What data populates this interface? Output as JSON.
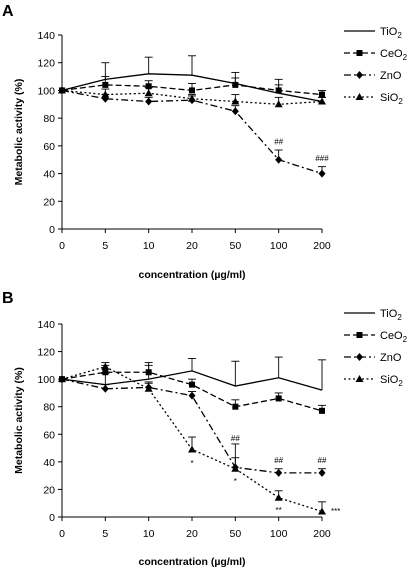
{
  "chart_data": [
    {
      "panel": "A",
      "type": "line",
      "xlabel": "concentration (µg/ml)",
      "ylabel": "Metabolic activity (%)",
      "categories": [
        "0",
        "5",
        "10",
        "20",
        "50",
        "100",
        "200"
      ],
      "ylim": [
        0,
        140
      ],
      "yticks": [
        "0",
        "20",
        "40",
        "60",
        "80",
        "100",
        "120",
        "140"
      ],
      "grid": false,
      "legend": "top-right",
      "series": [
        {
          "name": "TiO",
          "sub": "2",
          "style": "solid",
          "marker": "none",
          "values": [
            100,
            108,
            112,
            111,
            105,
            98,
            92
          ],
          "errors": [
            0,
            12,
            12,
            14,
            8,
            10,
            3
          ]
        },
        {
          "name": "CeO",
          "sub": "2",
          "style": "dashed",
          "marker": "square",
          "values": [
            100,
            104,
            103,
            100,
            104,
            100,
            97
          ],
          "errors": [
            0,
            6,
            4,
            5,
            5,
            4,
            3
          ]
        },
        {
          "name": "ZnO",
          "sub": "",
          "style": "dashdot",
          "marker": "diamond",
          "values": [
            100,
            94,
            92,
            93,
            85,
            50,
            40
          ],
          "errors": [
            0,
            3,
            3,
            3,
            4,
            7,
            5
          ]
        },
        {
          "name": "SiO",
          "sub": "2",
          "style": "dotted",
          "marker": "triangle",
          "values": [
            100,
            97,
            98,
            94,
            92,
            90,
            92
          ],
          "errors": [
            0,
            4,
            4,
            3,
            5,
            5,
            3
          ]
        }
      ],
      "annotations": [
        {
          "text": "##",
          "x": "100",
          "y": 61
        },
        {
          "text": "###",
          "x": "200",
          "y": 49
        }
      ]
    },
    {
      "panel": "B",
      "type": "line",
      "xlabel": "concentration (µg/ml)",
      "ylabel": "Metabolic activity (%)",
      "categories": [
        "0",
        "5",
        "10",
        "20",
        "50",
        "100",
        "200"
      ],
      "ylim": [
        0,
        140
      ],
      "yticks": [
        "0",
        "20",
        "40",
        "60",
        "80",
        "100",
        "120",
        "140"
      ],
      "grid": false,
      "legend": "top-right",
      "series": [
        {
          "name": "TiO",
          "sub": "2",
          "style": "solid",
          "marker": "none",
          "values": [
            100,
            96,
            100,
            106,
            95,
            101,
            92
          ],
          "errors": [
            0,
            8,
            12,
            9,
            18,
            15,
            22
          ]
        },
        {
          "name": "CeO",
          "sub": "2",
          "style": "dashed",
          "marker": "square",
          "values": [
            100,
            105,
            105,
            96,
            80,
            86,
            77
          ],
          "errors": [
            0,
            5,
            5,
            4,
            5,
            4,
            4
          ]
        },
        {
          "name": "ZnO",
          "sub": "",
          "style": "dashdot",
          "marker": "diamond",
          "values": [
            100,
            93,
            94,
            88,
            36,
            32,
            32
          ],
          "errors": [
            0,
            3,
            3,
            3,
            7,
            3,
            3
          ]
        },
        {
          "name": "SiO",
          "sub": "2",
          "style": "dotted",
          "marker": "triangle",
          "values": [
            100,
            109,
            93,
            49,
            35,
            14,
            4
          ],
          "errors": [
            0,
            3,
            5,
            9,
            18,
            5,
            7
          ]
        }
      ],
      "annotations": [
        {
          "text": "##",
          "x": "50",
          "y": 55
        },
        {
          "text": "##",
          "x": "100",
          "y": 39
        },
        {
          "text": "##",
          "x": "200",
          "y": 39
        },
        {
          "text": "*",
          "x": "20",
          "y": 37
        },
        {
          "text": "*",
          "x": "50",
          "y": 24
        },
        {
          "text": "**",
          "x": "100",
          "y": 3
        },
        {
          "text": "***",
          "x": "200",
          "y": 2
        }
      ]
    }
  ]
}
